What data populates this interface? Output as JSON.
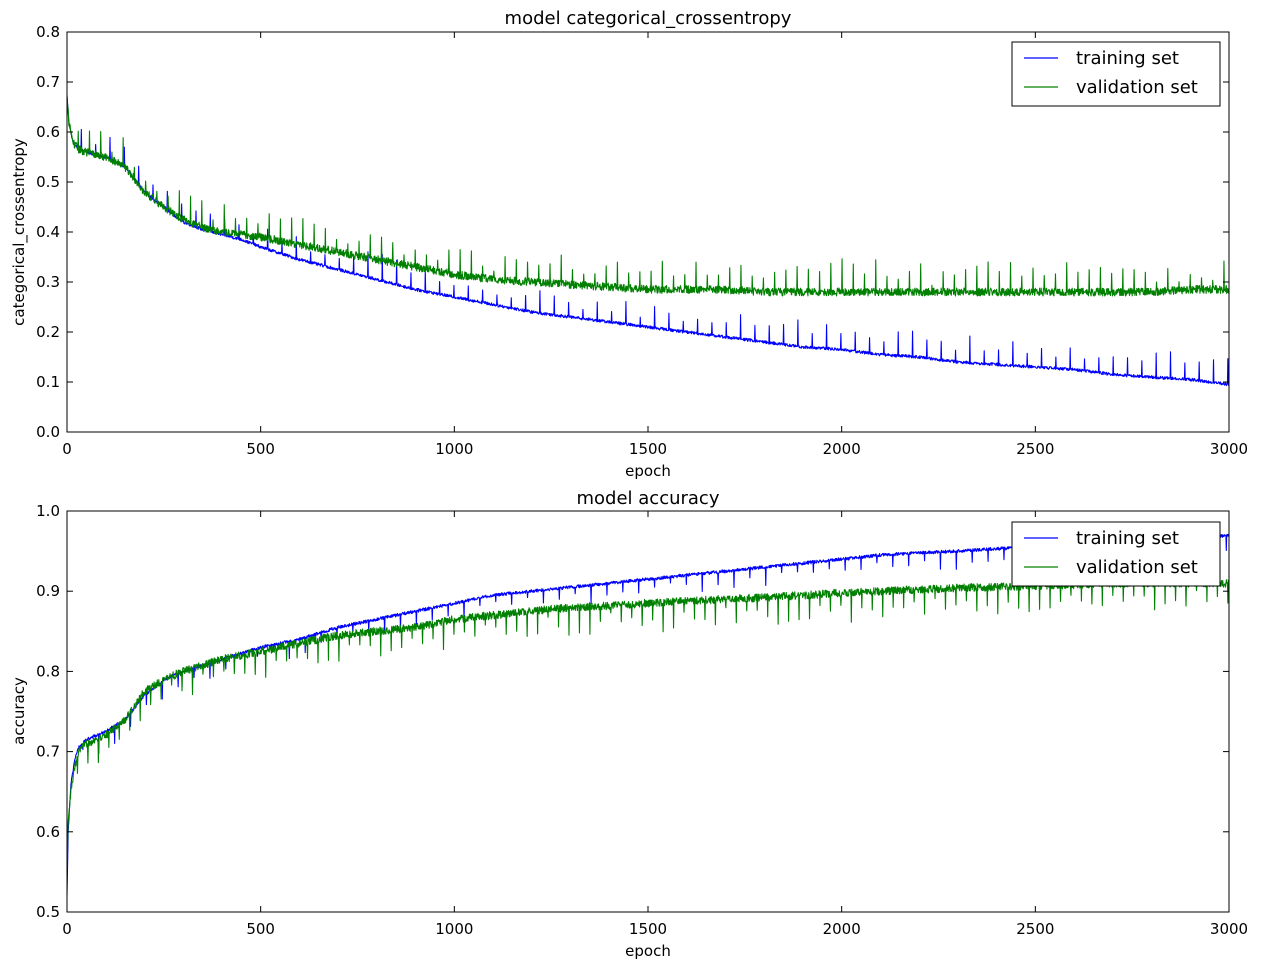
{
  "chart_data": [
    {
      "type": "line",
      "title": "model categorical_crossentropy",
      "xlabel": "epoch",
      "ylabel": "categorical_crossentropy",
      "xlim": [
        0,
        3000
      ],
      "ylim": [
        0.0,
        0.8
      ],
      "x_ticks": [
        "0",
        "500",
        "1000",
        "1500",
        "2000",
        "2500",
        "3000"
      ],
      "y_ticks": [
        "0.0",
        "0.1",
        "0.2",
        "0.3",
        "0.4",
        "0.5",
        "0.6",
        "0.7",
        "0.8"
      ],
      "legend_position": "top-right",
      "grid": false,
      "series": [
        {
          "name": "training set",
          "color": "#0000ff",
          "noise": 0.003,
          "spike_every": 37,
          "spike_sign": 1,
          "spike_size": 0.045,
          "x": [
            0,
            5,
            15,
            30,
            50,
            100,
            150,
            200,
            250,
            300,
            350,
            400,
            450,
            500,
            600,
            700,
            800,
            900,
            1000,
            1100,
            1200,
            1300,
            1400,
            1500,
            1600,
            1700,
            1800,
            1900,
            2000,
            2100,
            2200,
            2300,
            2400,
            2500,
            2600,
            2700,
            2800,
            2900,
            3000
          ],
          "y": [
            0.67,
            0.62,
            0.58,
            0.565,
            0.56,
            0.55,
            0.53,
            0.48,
            0.45,
            0.42,
            0.405,
            0.395,
            0.385,
            0.37,
            0.345,
            0.325,
            0.305,
            0.285,
            0.27,
            0.255,
            0.24,
            0.23,
            0.22,
            0.21,
            0.2,
            0.19,
            0.18,
            0.17,
            0.165,
            0.155,
            0.15,
            0.14,
            0.135,
            0.13,
            0.125,
            0.115,
            0.11,
            0.105,
            0.095
          ]
        },
        {
          "name": "validation set",
          "color": "#008000",
          "noise": 0.008,
          "spike_every": 29,
          "spike_sign": 1,
          "spike_size": 0.05,
          "x": [
            0,
            5,
            15,
            30,
            50,
            100,
            150,
            200,
            250,
            300,
            350,
            400,
            450,
            500,
            600,
            700,
            800,
            900,
            1000,
            1100,
            1200,
            1300,
            1400,
            1500,
            1600,
            1700,
            1800,
            1900,
            2000,
            2100,
            2200,
            2300,
            2400,
            2500,
            2600,
            2700,
            2800,
            2900,
            3000
          ],
          "y": [
            0.67,
            0.62,
            0.58,
            0.565,
            0.56,
            0.55,
            0.53,
            0.48,
            0.45,
            0.425,
            0.41,
            0.4,
            0.395,
            0.39,
            0.375,
            0.36,
            0.345,
            0.33,
            0.315,
            0.305,
            0.3,
            0.295,
            0.29,
            0.285,
            0.285,
            0.285,
            0.28,
            0.28,
            0.28,
            0.28,
            0.28,
            0.28,
            0.28,
            0.28,
            0.28,
            0.28,
            0.28,
            0.285,
            0.285
          ]
        }
      ]
    },
    {
      "type": "line",
      "title": "model accuracy",
      "xlabel": "epoch",
      "ylabel": "accuracy",
      "xlim": [
        0,
        3000
      ],
      "ylim": [
        0.5,
        1.0
      ],
      "x_ticks": [
        "0",
        "500",
        "1000",
        "1500",
        "2000",
        "2500",
        "3000"
      ],
      "y_ticks": [
        "0.5",
        "0.6",
        "0.7",
        "0.8",
        "0.9",
        "1.0"
      ],
      "legend_position": "top-right",
      "grid": false,
      "series": [
        {
          "name": "training set",
          "color": "#0000ff",
          "noise": 0.002,
          "spike_every": 41,
          "spike_sign": -1,
          "spike_size": 0.02,
          "x": [
            0,
            3,
            10,
            20,
            30,
            50,
            100,
            150,
            200,
            250,
            300,
            400,
            500,
            600,
            700,
            800,
            900,
            1000,
            1100,
            1200,
            1300,
            1400,
            1500,
            1600,
            1700,
            1800,
            1900,
            2000,
            2100,
            2200,
            2300,
            2400,
            2500,
            2600,
            2700,
            2800,
            2900,
            3000
          ],
          "y": [
            0.52,
            0.6,
            0.66,
            0.69,
            0.705,
            0.715,
            0.725,
            0.74,
            0.77,
            0.79,
            0.8,
            0.815,
            0.83,
            0.84,
            0.855,
            0.865,
            0.875,
            0.885,
            0.895,
            0.9,
            0.905,
            0.91,
            0.915,
            0.92,
            0.925,
            0.93,
            0.935,
            0.94,
            0.945,
            0.948,
            0.95,
            0.953,
            0.955,
            0.958,
            0.96,
            0.962,
            0.965,
            0.97
          ]
        },
        {
          "name": "validation set",
          "color": "#008000",
          "noise": 0.005,
          "spike_every": 27,
          "spike_sign": -1,
          "spike_size": 0.03,
          "x": [
            0,
            3,
            10,
            20,
            30,
            50,
            100,
            150,
            200,
            250,
            300,
            400,
            500,
            600,
            700,
            800,
            900,
            1000,
            1100,
            1200,
            1300,
            1400,
            1500,
            1600,
            1700,
            1800,
            1900,
            2000,
            2100,
            2200,
            2300,
            2400,
            2500,
            2600,
            2700,
            2800,
            2900,
            3000
          ],
          "y": [
            0.55,
            0.61,
            0.65,
            0.68,
            0.7,
            0.71,
            0.72,
            0.74,
            0.775,
            0.79,
            0.8,
            0.815,
            0.825,
            0.835,
            0.845,
            0.85,
            0.855,
            0.865,
            0.87,
            0.875,
            0.88,
            0.882,
            0.885,
            0.888,
            0.89,
            0.892,
            0.895,
            0.898,
            0.9,
            0.902,
            0.904,
            0.905,
            0.907,
            0.908,
            0.91,
            0.91,
            0.91,
            0.91
          ]
        }
      ]
    }
  ]
}
